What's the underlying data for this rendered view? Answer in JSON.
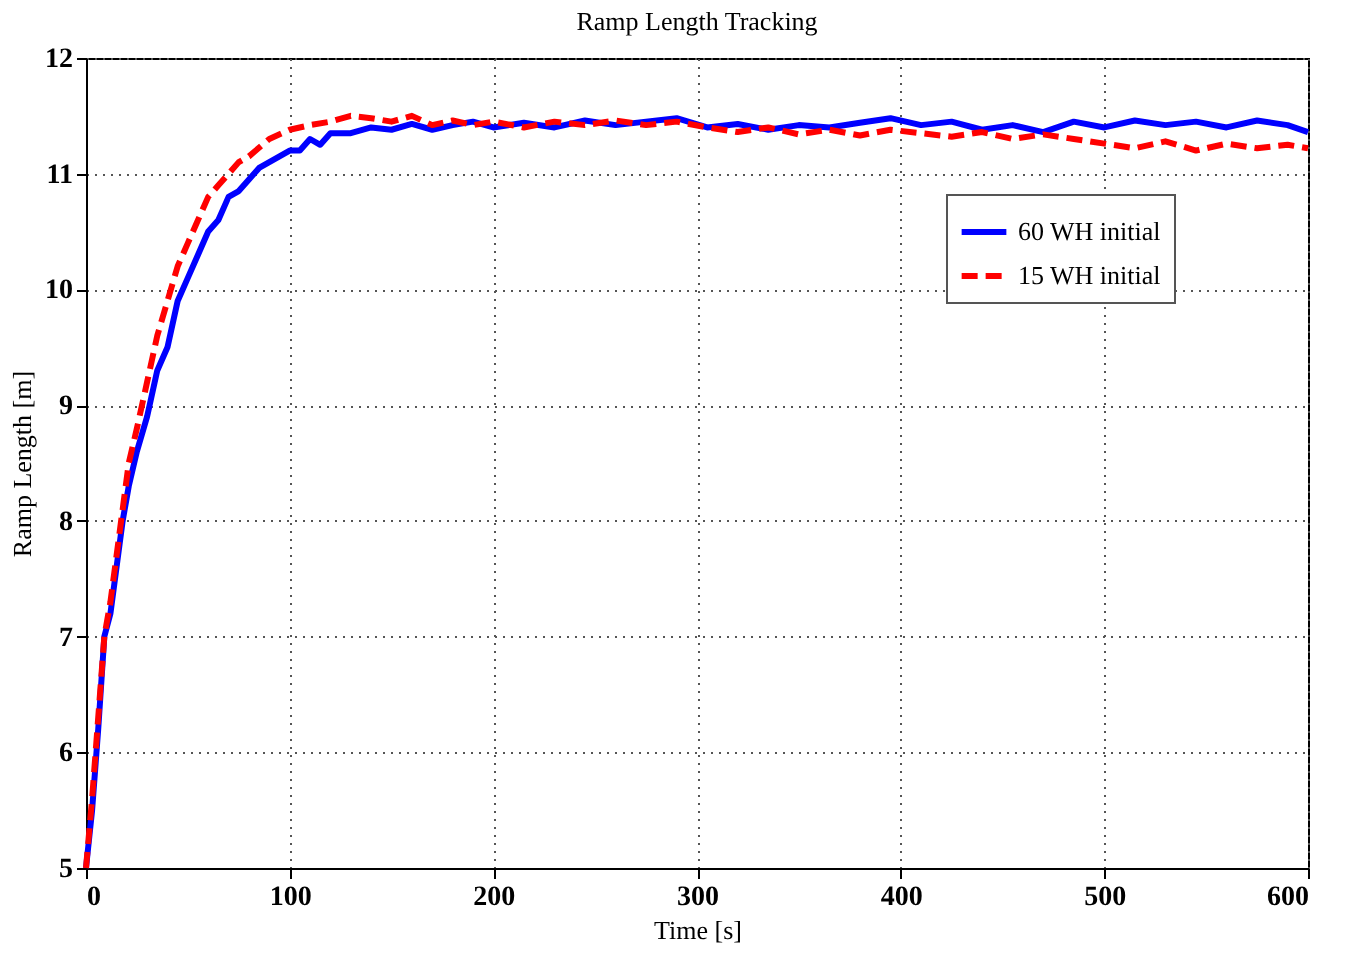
{
  "chart_data": {
    "type": "line",
    "title": "Ramp Length Tracking",
    "xlabel": "Time [s]",
    "ylabel": "Ramp Length [m]",
    "xlim": [
      0,
      600
    ],
    "ylim": [
      5,
      12
    ],
    "xticks": [
      0,
      100,
      200,
      300,
      400,
      500,
      600
    ],
    "yticks": [
      5,
      6,
      7,
      8,
      9,
      10,
      11,
      12
    ],
    "grid": true,
    "legend": "top right",
    "series": [
      {
        "name": "60 WH initial",
        "color": "#0000ff",
        "line_style": "solid",
        "x": [
          0,
          3,
          6,
          9,
          12,
          15,
          18,
          21,
          25,
          30,
          35,
          40,
          45,
          50,
          55,
          60,
          65,
          70,
          75,
          80,
          85,
          90,
          95,
          100,
          105,
          110,
          115,
          120,
          130,
          140,
          150,
          160,
          170,
          180,
          190,
          200,
          215,
          230,
          245,
          260,
          275,
          290,
          305,
          320,
          335,
          350,
          365,
          380,
          395,
          410,
          425,
          440,
          455,
          470,
          485,
          500,
          515,
          530,
          545,
          560,
          575,
          590,
          600
        ],
        "values": [
          5.0,
          5.5,
          6.2,
          7.0,
          7.2,
          7.6,
          8.0,
          8.3,
          8.6,
          8.9,
          9.3,
          9.5,
          9.9,
          10.1,
          10.3,
          10.5,
          10.6,
          10.8,
          10.85,
          10.95,
          11.05,
          11.1,
          11.15,
          11.2,
          11.2,
          11.3,
          11.25,
          11.35,
          11.35,
          11.4,
          11.38,
          11.43,
          11.38,
          11.42,
          11.45,
          11.4,
          11.44,
          11.4,
          11.46,
          11.42,
          11.45,
          11.48,
          11.4,
          11.43,
          11.38,
          11.42,
          11.4,
          11.44,
          11.48,
          11.42,
          11.45,
          11.38,
          11.42,
          11.36,
          11.45,
          11.4,
          11.46,
          11.42,
          11.45,
          11.4,
          11.46,
          11.42,
          11.36
        ]
      },
      {
        "name": "15 WH initial",
        "color": "#ff0000",
        "line_style": "dashed",
        "x": [
          0,
          3,
          6,
          9,
          12,
          15,
          18,
          21,
          25,
          30,
          35,
          40,
          45,
          50,
          55,
          60,
          65,
          70,
          75,
          80,
          90,
          100,
          110,
          120,
          130,
          140,
          150,
          160,
          170,
          180,
          190,
          200,
          215,
          230,
          245,
          260,
          275,
          290,
          305,
          320,
          335,
          350,
          365,
          380,
          395,
          410,
          425,
          440,
          455,
          470,
          485,
          500,
          515,
          530,
          545,
          560,
          575,
          590,
          600
        ],
        "values": [
          5.0,
          5.6,
          6.3,
          7.0,
          7.3,
          7.7,
          8.1,
          8.5,
          8.8,
          9.2,
          9.6,
          9.9,
          10.2,
          10.4,
          10.6,
          10.8,
          10.9,
          11.0,
          11.1,
          11.15,
          11.3,
          11.38,
          11.42,
          11.45,
          11.5,
          11.48,
          11.45,
          11.5,
          11.42,
          11.46,
          11.42,
          11.45,
          11.4,
          11.45,
          11.42,
          11.46,
          11.42,
          11.45,
          11.4,
          11.36,
          11.4,
          11.34,
          11.38,
          11.33,
          11.38,
          11.35,
          11.32,
          11.36,
          11.3,
          11.34,
          11.3,
          11.26,
          11.22,
          11.28,
          11.2,
          11.26,
          11.22,
          11.25,
          11.22
        ]
      }
    ]
  }
}
